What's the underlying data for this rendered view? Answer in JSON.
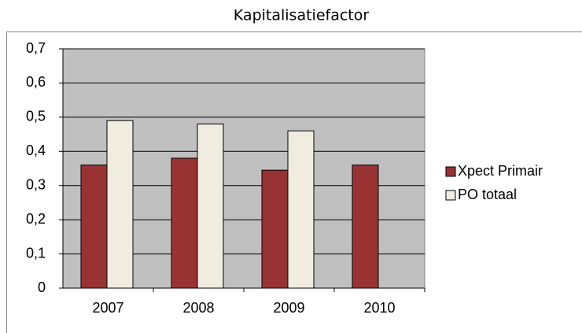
{
  "chart_data": {
    "type": "bar",
    "title": "Kapitalisatiefactor",
    "categories": [
      "2007",
      "2008",
      "2009",
      "2010"
    ],
    "series": [
      {
        "name": "Xpect Primair",
        "color": "#993333",
        "values": [
          0.36,
          0.38,
          0.345,
          0.36
        ]
      },
      {
        "name": "PO totaal",
        "color": "#f0ede0",
        "values": [
          0.49,
          0.48,
          0.46,
          null
        ]
      }
    ],
    "ylim": [
      0,
      0.7
    ],
    "yticks": [
      0,
      {
        "value": 0.1,
        "label": "0,1"
      },
      {
        "value": 0.2,
        "label": "0,2"
      },
      {
        "value": 0.3,
        "label": "0,3"
      },
      {
        "value": 0.4,
        "label": "0,4"
      },
      {
        "value": 0.5,
        "label": "0,5"
      },
      {
        "value": 0.6,
        "label": "0,6"
      },
      {
        "value": 0.7,
        "label": "0,7"
      }
    ],
    "grid": true,
    "legend": "right",
    "plot_background": "#c0c0c0"
  }
}
